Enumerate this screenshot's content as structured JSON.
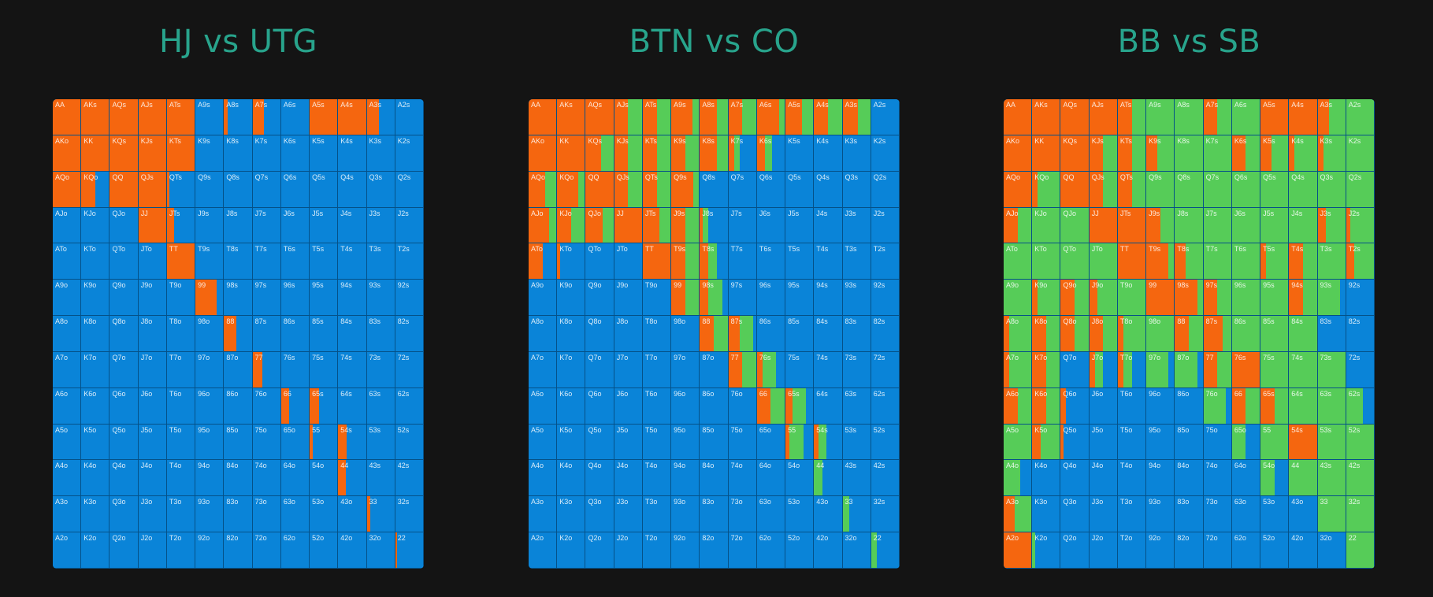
{
  "colors": {
    "raise": "#f5660f",
    "call": "#56cc58",
    "fold": "#0a84d8",
    "title": "#28a48c",
    "background": "#141414"
  },
  "hands": [
    [
      "AA",
      "AKs",
      "AQs",
      "AJs",
      "ATs",
      "A9s",
      "A8s",
      "A7s",
      "A6s",
      "A5s",
      "A4s",
      "A3s",
      "A2s"
    ],
    [
      "AKo",
      "KK",
      "KQs",
      "KJs",
      "KTs",
      "K9s",
      "K8s",
      "K7s",
      "K6s",
      "K5s",
      "K4s",
      "K3s",
      "K2s"
    ],
    [
      "AQo",
      "KQo",
      "QQ",
      "QJs",
      "QTs",
      "Q9s",
      "Q8s",
      "Q7s",
      "Q6s",
      "Q5s",
      "Q4s",
      "Q3s",
      "Q2s"
    ],
    [
      "AJo",
      "KJo",
      "QJo",
      "JJ",
      "JTs",
      "J9s",
      "J8s",
      "J7s",
      "J6s",
      "J5s",
      "J4s",
      "J3s",
      "J2s"
    ],
    [
      "ATo",
      "KTo",
      "QTo",
      "JTo",
      "TT",
      "T9s",
      "T8s",
      "T7s",
      "T6s",
      "T5s",
      "T4s",
      "T3s",
      "T2s"
    ],
    [
      "A9o",
      "K9o",
      "Q9o",
      "J9o",
      "T9o",
      "99",
      "98s",
      "97s",
      "96s",
      "95s",
      "94s",
      "93s",
      "92s"
    ],
    [
      "A8o",
      "K8o",
      "Q8o",
      "J8o",
      "T8o",
      "98o",
      "88",
      "87s",
      "86s",
      "85s",
      "84s",
      "83s",
      "82s"
    ],
    [
      "A7o",
      "K7o",
      "Q7o",
      "J7o",
      "T7o",
      "97o",
      "87o",
      "77",
      "76s",
      "75s",
      "74s",
      "73s",
      "72s"
    ],
    [
      "A6o",
      "K6o",
      "Q6o",
      "J6o",
      "T6o",
      "96o",
      "86o",
      "76o",
      "66",
      "65s",
      "64s",
      "63s",
      "62s"
    ],
    [
      "A5o",
      "K5o",
      "Q5o",
      "J5o",
      "T5o",
      "95o",
      "85o",
      "75o",
      "65o",
      "55",
      "54s",
      "53s",
      "52s"
    ],
    [
      "A4o",
      "K4o",
      "Q4o",
      "J4o",
      "T4o",
      "94o",
      "84o",
      "74o",
      "64o",
      "54o",
      "44",
      "43s",
      "42s"
    ],
    [
      "A3o",
      "K3o",
      "Q3o",
      "J3o",
      "T3o",
      "93o",
      "83o",
      "73o",
      "63o",
      "53o",
      "43o",
      "33",
      "32s"
    ],
    [
      "A2o",
      "K2o",
      "Q2o",
      "J2o",
      "T2o",
      "92o",
      "82o",
      "72o",
      "62o",
      "52o",
      "42o",
      "32o",
      "22"
    ]
  ],
  "charts": [
    {
      "title": "HJ vs UTG",
      "mix": {
        "AA": [
          1,
          0
        ],
        "AKs": [
          1,
          0
        ],
        "AQs": [
          1,
          0
        ],
        "AJs": [
          1,
          0
        ],
        "ATs": [
          1,
          0
        ],
        "A8s": [
          0.12,
          0
        ],
        "A7s": [
          0.4,
          0
        ],
        "A5s": [
          1,
          0
        ],
        "A4s": [
          1,
          0
        ],
        "A3s": [
          0.45,
          0
        ],
        "AKo": [
          1,
          0
        ],
        "KK": [
          1,
          0
        ],
        "KQs": [
          1,
          0
        ],
        "KJs": [
          1,
          0
        ],
        "KTs": [
          1,
          0
        ],
        "AQo": [
          1,
          0
        ],
        "KQo": [
          0.5,
          0
        ],
        "QQ": [
          1,
          0
        ],
        "QJs": [
          1,
          0
        ],
        "QTs": [
          0.08,
          0
        ],
        "JJ": [
          1,
          0
        ],
        "JTs": [
          0.25,
          0
        ],
        "TT": [
          1,
          0
        ],
        "99": [
          0.75,
          0
        ],
        "88": [
          0.45,
          0
        ],
        "77": [
          0.35,
          0
        ],
        "66": [
          0.3,
          0
        ],
        "65s": [
          0.35,
          0
        ],
        "55": [
          0.12,
          0
        ],
        "54s": [
          0.3,
          0
        ],
        "44": [
          0.28,
          0
        ],
        "33": [
          0.12,
          0
        ],
        "22": [
          0.06,
          0
        ]
      }
    },
    {
      "title": "BTN vs CO",
      "mix": {
        "AA": [
          1,
          0
        ],
        "AKs": [
          1,
          0
        ],
        "AQs": [
          1,
          0
        ],
        "AJs": [
          0.5,
          0.5
        ],
        "ATs": [
          0.5,
          0.5
        ],
        "A9s": [
          0.75,
          0.25
        ],
        "A8s": [
          0.6,
          0.4
        ],
        "A7s": [
          0.5,
          0.5
        ],
        "A6s": [
          0.8,
          0.2
        ],
        "A5s": [
          0.6,
          0.4
        ],
        "A4s": [
          0.5,
          0.5
        ],
        "A3s": [
          0.55,
          0.45
        ],
        "AKo": [
          1,
          0
        ],
        "KK": [
          1,
          0
        ],
        "KQs": [
          0.55,
          0.45
        ],
        "KJs": [
          0.5,
          0.5
        ],
        "KTs": [
          0.5,
          0.5
        ],
        "K9s": [
          0.5,
          0.5
        ],
        "K8s": [
          0.6,
          0.4
        ],
        "K7s": [
          0.2,
          0.2
        ],
        "K6s": [
          0.3,
          0.25
        ],
        "AQo": [
          0.6,
          0.4
        ],
        "KQo": [
          0.75,
          0.25
        ],
        "QQ": [
          1,
          0
        ],
        "QJs": [
          0.5,
          0.5
        ],
        "QTs": [
          0.5,
          0.5
        ],
        "Q9s": [
          0.8,
          0.2
        ],
        "AJo": [
          0.75,
          0.25
        ],
        "KJo": [
          0.5,
          0.5
        ],
        "QJo": [
          0.6,
          0.4
        ],
        "JJ": [
          1,
          0
        ],
        "JTs": [
          0.6,
          0.4
        ],
        "J9s": [
          0.5,
          0.5
        ],
        "J8s": [
          0.1,
          0.2
        ],
        "ATo": [
          0.5,
          0
        ],
        "KTo": [
          0.1,
          0
        ],
        "TT": [
          1,
          0
        ],
        "T9s": [
          0.5,
          0.5
        ],
        "T8s": [
          0.3,
          0.3
        ],
        "99": [
          0.5,
          0.5
        ],
        "98s": [
          0.3,
          0.5
        ],
        "88": [
          0.5,
          0.5
        ],
        "87s": [
          0.4,
          0.5
        ],
        "77": [
          0.5,
          0.5
        ],
        "76s": [
          0.2,
          0.5
        ],
        "66": [
          0.5,
          0.5
        ],
        "65s": [
          0.25,
          0.5
        ],
        "55": [
          0.15,
          0.5
        ],
        "54s": [
          0.15,
          0.3
        ],
        "44": [
          0,
          0.3
        ],
        "33": [
          0,
          0.25
        ],
        "22": [
          0,
          0.2
        ]
      }
    },
    {
      "title": "BB vs SB",
      "mix": {
        "AA": [
          1,
          0
        ],
        "AKs": [
          1,
          0
        ],
        "AQs": [
          1,
          0
        ],
        "AJs": [
          1,
          0
        ],
        "ATs": [
          0.5,
          0.5
        ],
        "A9s": [
          0,
          1
        ],
        "A8s": [
          0,
          1
        ],
        "A7s": [
          0.5,
          0.5
        ],
        "A6s": [
          0,
          1
        ],
        "A5s": [
          1,
          0
        ],
        "A4s": [
          1,
          0
        ],
        "A3s": [
          0.4,
          0.6
        ],
        "A2s": [
          0,
          1
        ],
        "AKo": [
          1,
          0
        ],
        "KK": [
          1,
          0
        ],
        "KQs": [
          1,
          0
        ],
        "KJs": [
          0.5,
          0.5
        ],
        "KTs": [
          0.5,
          0.5
        ],
        "K9s": [
          0.4,
          0.6
        ],
        "K8s": [
          0,
          1
        ],
        "K7s": [
          0,
          1
        ],
        "K6s": [
          0.5,
          0.5
        ],
        "K5s": [
          0.4,
          0.6
        ],
        "K4s": [
          0.2,
          0.8
        ],
        "K3s": [
          0.2,
          0.8
        ],
        "K2s": [
          0,
          1
        ],
        "AQo": [
          1,
          0
        ],
        "KQo": [
          0.2,
          0.8
        ],
        "QQ": [
          1,
          0
        ],
        "QJs": [
          0.5,
          0.5
        ],
        "QTs": [
          0.5,
          0.5
        ],
        "Q9s": [
          0,
          1
        ],
        "Q8s": [
          0,
          1
        ],
        "Q7s": [
          0,
          1
        ],
        "Q6s": [
          0,
          1
        ],
        "Q5s": [
          0,
          1
        ],
        "Q4s": [
          0,
          1
        ],
        "Q3s": [
          0,
          1
        ],
        "Q2s": [
          0,
          1
        ],
        "AJo": [
          0.5,
          0.5
        ],
        "KJo": [
          0,
          1
        ],
        "QJo": [
          0,
          1
        ],
        "JJ": [
          1,
          0
        ],
        "JTs": [
          1,
          0
        ],
        "J9s": [
          0.5,
          0.5
        ],
        "J8s": [
          0,
          1
        ],
        "J7s": [
          0,
          1
        ],
        "J6s": [
          0,
          1
        ],
        "J5s": [
          0,
          1
        ],
        "J4s": [
          0,
          1
        ],
        "J3s": [
          0.3,
          0.7
        ],
        "J2s": [
          0.15,
          0.85
        ],
        "ATo": [
          0,
          1
        ],
        "KTo": [
          0,
          1
        ],
        "QTo": [
          0,
          1
        ],
        "JTo": [
          0,
          1
        ],
        "TT": [
          1,
          0
        ],
        "T9s": [
          0.8,
          0.2
        ],
        "T8s": [
          0.4,
          0.6
        ],
        "T7s": [
          0,
          1
        ],
        "T6s": [
          0,
          1
        ],
        "T5s": [
          0.2,
          0.8
        ],
        "T4s": [
          0.5,
          0.5
        ],
        "T3s": [
          0,
          1
        ],
        "T2s": [
          0.3,
          0.7
        ],
        "A9o": [
          0,
          1
        ],
        "K9o": [
          0.2,
          0.8
        ],
        "Q9o": [
          0.5,
          0.5
        ],
        "J9o": [
          0.3,
          0.7
        ],
        "T9o": [
          0,
          1
        ],
        "99": [
          1,
          0
        ],
        "98s": [
          0.8,
          0.2
        ],
        "97s": [
          0.5,
          0.5
        ],
        "96s": [
          0,
          1
        ],
        "95s": [
          0,
          1
        ],
        "94s": [
          0.5,
          0.5
        ],
        "93s": [
          0,
          0.8
        ],
        "A8o": [
          0.2,
          0.8
        ],
        "K8o": [
          0.5,
          0.5
        ],
        "Q8o": [
          0.5,
          0.5
        ],
        "J8o": [
          0.5,
          0.5
        ],
        "T8o": [
          0.2,
          0.8
        ],
        "98o": [
          0,
          1
        ],
        "88": [
          0.5,
          0.5
        ],
        "87s": [
          0.7,
          0.3
        ],
        "86s": [
          0,
          1
        ],
        "85s": [
          0,
          1
        ],
        "84s": [
          0,
          1
        ],
        "A7o": [
          0.2,
          0.8
        ],
        "K7o": [
          0.5,
          0.5
        ],
        "J7o": [
          0.2,
          0.3
        ],
        "T7o": [
          0.2,
          0.3
        ],
        "97o": [
          0,
          0.8
        ],
        "87o": [
          0,
          0.8
        ],
        "77": [
          0.5,
          0.5
        ],
        "76s": [
          1,
          0
        ],
        "75s": [
          0,
          1
        ],
        "74s": [
          0,
          1
        ],
        "73s": [
          0,
          1
        ],
        "A6o": [
          0.5,
          0.5
        ],
        "K6o": [
          0.5,
          0.5
        ],
        "Q6o": [
          0.2,
          0
        ],
        "76o": [
          0,
          0.8
        ],
        "66": [
          0.5,
          0.5
        ],
        "65s": [
          0.5,
          0.5
        ],
        "64s": [
          0,
          1
        ],
        "63s": [
          0,
          1
        ],
        "62s": [
          0,
          0.6
        ],
        "A5o": [
          0,
          1
        ],
        "K5o": [
          0.3,
          0.7
        ],
        "Q5o": [
          0.1,
          0
        ],
        "65o": [
          0,
          0.5
        ],
        "55": [
          0,
          1
        ],
        "54s": [
          1,
          0
        ],
        "53s": [
          0,
          1
        ],
        "52s": [
          0,
          1
        ],
        "A4o": [
          0,
          0.6
        ],
        "54o": [
          0,
          0.5
        ],
        "44": [
          0,
          1
        ],
        "43s": [
          0,
          1
        ],
        "42s": [
          0,
          1
        ],
        "A3o": [
          0.4,
          0.6
        ],
        "33": [
          0,
          1
        ],
        "32s": [
          0,
          1
        ],
        "A2o": [
          1,
          0
        ],
        "K2o": [
          0,
          0.1
        ],
        "22": [
          0,
          1
        ]
      }
    }
  ]
}
